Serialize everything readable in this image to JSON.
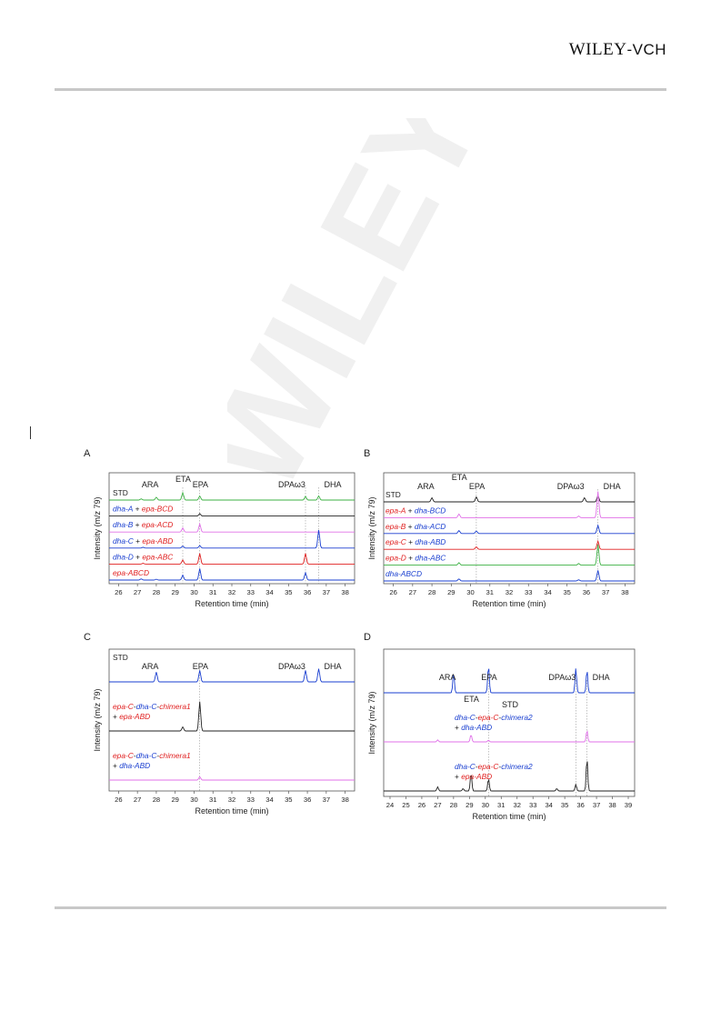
{
  "header": {
    "publisher_main": "WILEY",
    "publisher_sub": "-VCH",
    "watermark_text": "WILEY-VCH"
  },
  "colors": {
    "red": "#e02020",
    "blue": "#1a3fd0",
    "green": "#3cb043",
    "magenta": "#e070e8",
    "black": "#222222",
    "gray": "#888888"
  },
  "chart_data": [
    {
      "panel": "A",
      "type": "line",
      "xlabel": "Retention time (min)",
      "ylabel": "Intensity (m/z 79)",
      "xlim": [
        25.5,
        38.5
      ],
      "xticks": [
        "26",
        "27",
        "28",
        "29",
        "30",
        "31",
        "32",
        "33",
        "34",
        "35",
        "36",
        "37",
        "38"
      ],
      "peak_labels": [
        {
          "text": "ARA",
          "x": 28.0
        },
        {
          "text": "ETA",
          "x": 29.4
        },
        {
          "text": "EPA",
          "x": 30.3
        },
        {
          "text": "DPAω3",
          "x": 35.9
        },
        {
          "text": "DHA",
          "x": 36.6
        }
      ],
      "reference_lines": [
        29.4,
        30.3,
        35.9,
        36.6
      ],
      "series": [
        {
          "parts": [
            {
              "t": "STD",
              "c": "black"
            }
          ],
          "color": "green",
          "peaks": [
            [
              27.2,
              0.15
            ],
            [
              28.0,
              0.35
            ],
            [
              29.4,
              0.9
            ],
            [
              30.3,
              0.5
            ],
            [
              35.9,
              0.45
            ],
            [
              36.6,
              0.5
            ]
          ]
        },
        {
          "parts": [
            {
              "t": "dha-A",
              "c": "blue"
            },
            {
              "t": " + ",
              "c": "black"
            },
            {
              "t": "epa-BCD",
              "c": "red"
            }
          ],
          "color": "black",
          "peaks": [
            [
              30.3,
              0.3
            ]
          ]
        },
        {
          "parts": [
            {
              "t": "dha-B",
              "c": "blue"
            },
            {
              "t": " + ",
              "c": "black"
            },
            {
              "t": "epa-ACD",
              "c": "red"
            }
          ],
          "color": "magenta",
          "peaks": [
            [
              29.4,
              0.5
            ],
            [
              30.3,
              1.0
            ]
          ]
        },
        {
          "parts": [
            {
              "t": "dha-C",
              "c": "blue"
            },
            {
              "t": " + ",
              "c": "black"
            },
            {
              "t": "epa-ABD",
              "c": "red"
            }
          ],
          "color": "blue",
          "peaks": [
            [
              27.3,
              0.1
            ],
            [
              29.4,
              0.25
            ],
            [
              30.3,
              0.3
            ],
            [
              36.6,
              2.2
            ]
          ]
        },
        {
          "parts": [
            {
              "t": "dha-D",
              "c": "blue"
            },
            {
              "t": " + ",
              "c": "black"
            },
            {
              "t": "epa-ABC",
              "c": "red"
            }
          ],
          "color": "red",
          "peaks": [
            [
              27.3,
              0.1
            ],
            [
              29.4,
              0.5
            ],
            [
              30.3,
              1.3
            ],
            [
              35.9,
              1.3
            ]
          ]
        },
        {
          "parts": [
            {
              "t": "epa-ABCD",
              "c": "red"
            }
          ],
          "color": "blue",
          "peaks": [
            [
              27.2,
              0.15
            ],
            [
              28.0,
              0.1
            ],
            [
              29.4,
              0.6
            ],
            [
              30.3,
              1.4
            ],
            [
              35.9,
              0.9
            ]
          ]
        }
      ]
    },
    {
      "panel": "B",
      "type": "line",
      "xlabel": "Retention time (min)",
      "ylabel": "Intensity (m/z 79)",
      "xlim": [
        25.5,
        38.5
      ],
      "xticks": [
        "26",
        "27",
        "28",
        "29",
        "30",
        "31",
        "32",
        "33",
        "34",
        "35",
        "36",
        "37",
        "38"
      ],
      "peak_labels": [
        {
          "text": "ARA",
          "x": 28.0
        },
        {
          "text": "ETA",
          "x": 29.4
        },
        {
          "text": "EPA",
          "x": 30.3
        },
        {
          "text": "DPAω3",
          "x": 35.9
        },
        {
          "text": "DHA",
          "x": 36.6
        }
      ],
      "reference_lines": [
        30.3,
        36.6
      ],
      "series": [
        {
          "parts": [
            {
              "t": "STD",
              "c": "black"
            }
          ],
          "color": "black",
          "peaks": [
            [
              28.0,
              0.5
            ],
            [
              30.3,
              0.6
            ],
            [
              35.9,
              0.5
            ],
            [
              36.6,
              0.8
            ]
          ]
        },
        {
          "parts": [
            {
              "t": "epa-A",
              "c": "red"
            },
            {
              "t": " + ",
              "c": "black"
            },
            {
              "t": "dha-BCD",
              "c": "blue"
            }
          ],
          "color": "magenta",
          "peaks": [
            [
              29.4,
              0.45
            ],
            [
              35.6,
              0.2
            ],
            [
              36.6,
              3.2
            ]
          ]
        },
        {
          "parts": [
            {
              "t": "epa-B",
              "c": "red"
            },
            {
              "t": " + ",
              "c": "black"
            },
            {
              "t": "dha-ACD",
              "c": "blue"
            }
          ],
          "color": "blue",
          "peaks": [
            [
              29.4,
              0.35
            ],
            [
              30.3,
              0.3
            ],
            [
              36.6,
              1.0
            ]
          ]
        },
        {
          "parts": [
            {
              "t": "epa-C",
              "c": "red"
            },
            {
              "t": " + ",
              "c": "black"
            },
            {
              "t": "dha-ABD",
              "c": "blue"
            }
          ],
          "color": "red",
          "peaks": [
            [
              30.3,
              0.3
            ],
            [
              36.6,
              1.0
            ]
          ]
        },
        {
          "parts": [
            {
              "t": "epa-D",
              "c": "red"
            },
            {
              "t": " + ",
              "c": "black"
            },
            {
              "t": "dha-ABC",
              "c": "blue"
            }
          ],
          "color": "green",
          "peaks": [
            [
              29.4,
              0.3
            ],
            [
              35.6,
              0.2
            ],
            [
              36.6,
              2.5
            ]
          ]
        },
        {
          "parts": [
            {
              "t": "dha-ABCD",
              "c": "blue"
            }
          ],
          "color": "blue",
          "peaks": [
            [
              29.4,
              0.25
            ],
            [
              35.6,
              0.15
            ],
            [
              36.6,
              1.3
            ]
          ]
        }
      ]
    },
    {
      "panel": "C",
      "type": "line",
      "xlabel": "Retention time (min)",
      "ylabel": "Intensity (m/z 79)",
      "xlim": [
        25.5,
        38.5
      ],
      "xticks": [
        "26",
        "27",
        "28",
        "29",
        "30",
        "31",
        "32",
        "33",
        "34",
        "35",
        "36",
        "37",
        "38"
      ],
      "peak_labels": [
        {
          "text": "ARA",
          "x": 28.0
        },
        {
          "text": "EPA",
          "x": 30.3
        },
        {
          "text": "DPAω3",
          "x": 35.9
        },
        {
          "text": "DHA",
          "x": 36.6
        }
      ],
      "reference_lines": [
        30.3
      ],
      "series": [
        {
          "parts": [
            {
              "t": "STD",
              "c": "black"
            }
          ],
          "color": "blue",
          "peaks": [
            [
              28.0,
              1.2
            ],
            [
              30.3,
              1.4
            ],
            [
              35.9,
              1.4
            ],
            [
              36.6,
              1.6
            ]
          ]
        },
        {
          "parts": [
            {
              "t": "epa-C",
              "c": "red"
            },
            {
              "t": "-",
              "c": "black"
            },
            {
              "t": "dha-C",
              "c": "blue"
            },
            {
              "t": "-",
              "c": "black"
            },
            {
              "t": "chimera1",
              "c": "red"
            }
          ],
          "parts2": [
            {
              "t": "+ ",
              "c": "black"
            },
            {
              "t": "epa-ABD",
              "c": "red"
            }
          ],
          "color": "black",
          "peaks": [
            [
              29.4,
              0.5
            ],
            [
              30.3,
              3.6
            ]
          ]
        },
        {
          "parts": [
            {
              "t": "epa-C",
              "c": "red"
            },
            {
              "t": "-",
              "c": "black"
            },
            {
              "t": "dha-C",
              "c": "blue"
            },
            {
              "t": "-",
              "c": "black"
            },
            {
              "t": "chimera1",
              "c": "red"
            }
          ],
          "parts2": [
            {
              "t": "+ ",
              "c": "black"
            },
            {
              "t": "dha-ABD",
              "c": "blue"
            }
          ],
          "color": "magenta",
          "peaks": [
            [
              30.3,
              0.4
            ]
          ]
        }
      ]
    },
    {
      "panel": "D",
      "type": "line",
      "xlabel": "Retention time (min)",
      "ylabel": "Intensity (m/z 79)",
      "xlim": [
        23.6,
        39.4
      ],
      "xticks": [
        "24",
        "25",
        "26",
        "27",
        "28",
        "29",
        "30",
        "31",
        "32",
        "33",
        "34",
        "35",
        "36",
        "37",
        "38",
        "39"
      ],
      "peak_labels": [
        {
          "text": "ARA",
          "x": 28.0
        },
        {
          "text": "ETA",
          "x": 29.1
        },
        {
          "text": "EPA",
          "x": 30.2
        },
        {
          "text": "DPAω3",
          "x": 35.7
        },
        {
          "text": "DHA",
          "x": 36.4
        },
        {
          "text": "STD",
          "x": 31.5
        }
      ],
      "reference_lines": [
        30.2,
        35.7,
        36.4
      ],
      "series": [
        {
          "parts": [],
          "color": "blue",
          "peaks": [
            [
              28.0,
              2.5
            ],
            [
              30.2,
              3.3
            ],
            [
              35.7,
              3.0
            ],
            [
              36.4,
              2.8
            ]
          ]
        },
        {
          "parts": [
            {
              "t": "dha-C",
              "c": "blue"
            },
            {
              "t": "-",
              "c": "black"
            },
            {
              "t": "epa-C",
              "c": "red"
            },
            {
              "t": "-",
              "c": "black"
            },
            {
              "t": "chimera2",
              "c": "blue"
            }
          ],
          "parts2": [
            {
              "t": "+ ",
              "c": "black"
            },
            {
              "t": "dha-ABD",
              "c": "blue"
            }
          ],
          "color": "magenta",
          "peaks": [
            [
              27.0,
              0.25
            ],
            [
              29.1,
              0.9
            ],
            [
              30.2,
              0.2
            ],
            [
              36.4,
              1.4
            ]
          ]
        },
        {
          "parts": [
            {
              "t": "dha-C",
              "c": "blue"
            },
            {
              "t": "-",
              "c": "black"
            },
            {
              "t": "epa-C",
              "c": "red"
            },
            {
              "t": "-",
              "c": "black"
            },
            {
              "t": "chimera2",
              "c": "blue"
            }
          ],
          "parts2": [
            {
              "t": "+ ",
              "c": "black"
            },
            {
              "t": "epa-ABD",
              "c": "red"
            }
          ],
          "color": "black",
          "peaks": [
            [
              27.0,
              0.5
            ],
            [
              28.6,
              0.3
            ],
            [
              29.1,
              2.2
            ],
            [
              30.2,
              1.5
            ],
            [
              34.5,
              0.3
            ],
            [
              35.7,
              0.8
            ],
            [
              36.4,
              4.0
            ]
          ]
        }
      ]
    }
  ]
}
